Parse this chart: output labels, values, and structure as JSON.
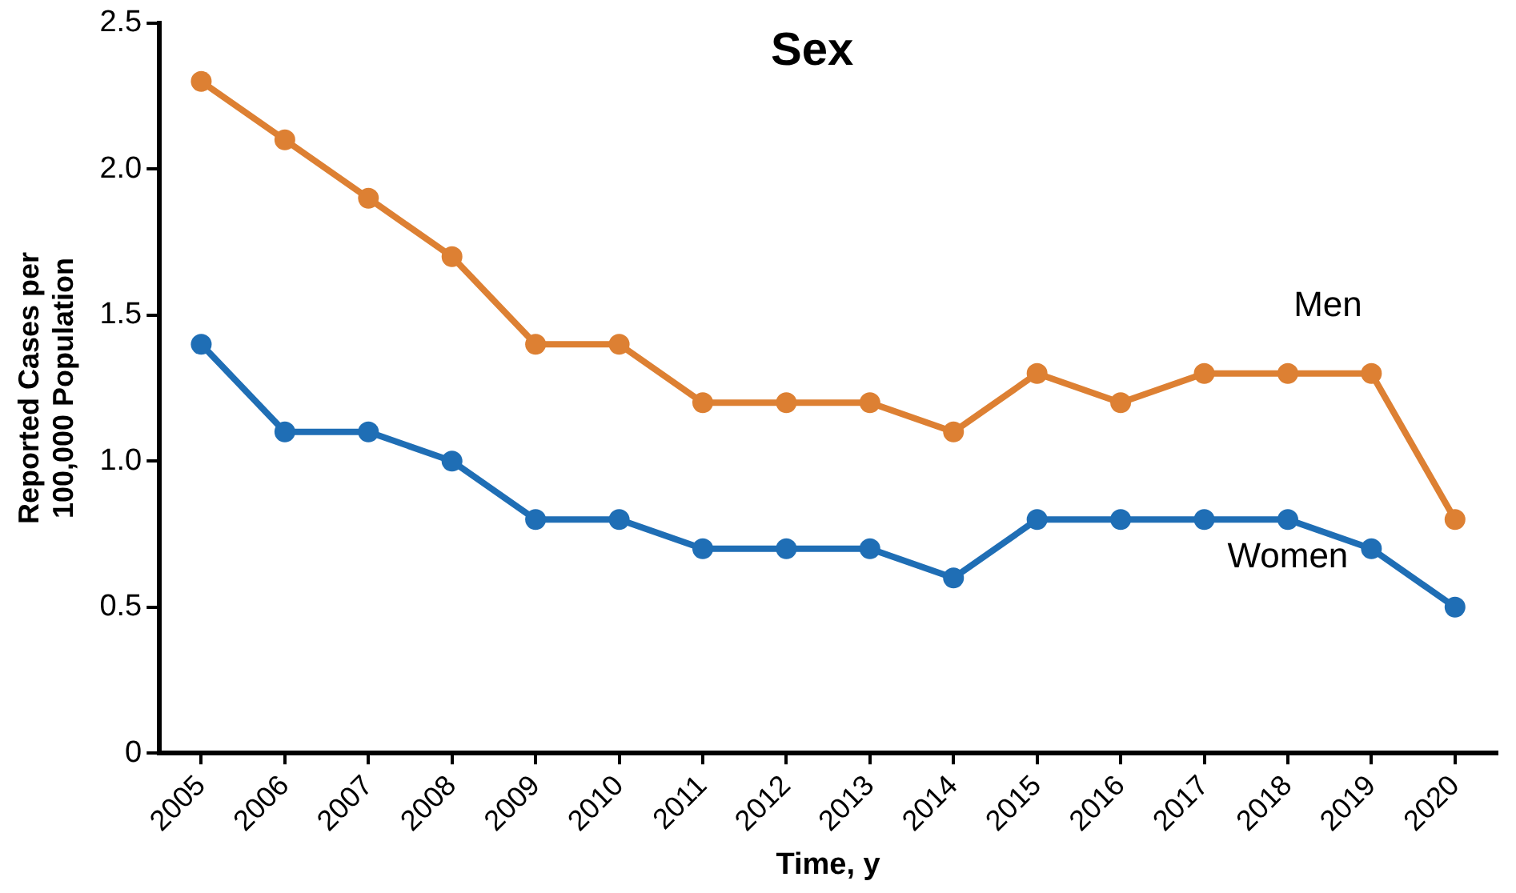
{
  "chart_data": {
    "type": "line",
    "title": "Sex",
    "xlabel": "Time, y",
    "ylabel": "Reported Cases per\n100,000 Population",
    "categories": [
      "2005",
      "2006",
      "2007",
      "2008",
      "2009",
      "2010",
      "2011",
      "2012",
      "2013",
      "2014",
      "2015",
      "2016",
      "2017",
      "2018",
      "2019",
      "2020"
    ],
    "series": [
      {
        "name": "Men",
        "color": "#dd8033",
        "values": [
          2.3,
          2.1,
          1.9,
          1.7,
          1.4,
          1.4,
          1.2,
          1.2,
          1.2,
          1.1,
          1.3,
          1.2,
          1.3,
          1.3,
          1.3,
          0.8
        ]
      },
      {
        "name": "Women",
        "color": "#1f6eb5",
        "values": [
          1.4,
          1.1,
          1.1,
          1.0,
          0.8,
          0.8,
          0.7,
          0.7,
          0.7,
          0.6,
          0.8,
          0.8,
          0.8,
          0.8,
          0.7,
          0.5
        ]
      }
    ],
    "ylim": [
      0,
      2.5
    ],
    "yticks": [
      0,
      0.5,
      {
        "value": 1,
        "label": "1.0"
      },
      1.5,
      {
        "value": 2,
        "label": "2.0"
      },
      2.5
    ],
    "grid": false,
    "legend": false,
    "marker": "circle",
    "line_style": "solid"
  }
}
